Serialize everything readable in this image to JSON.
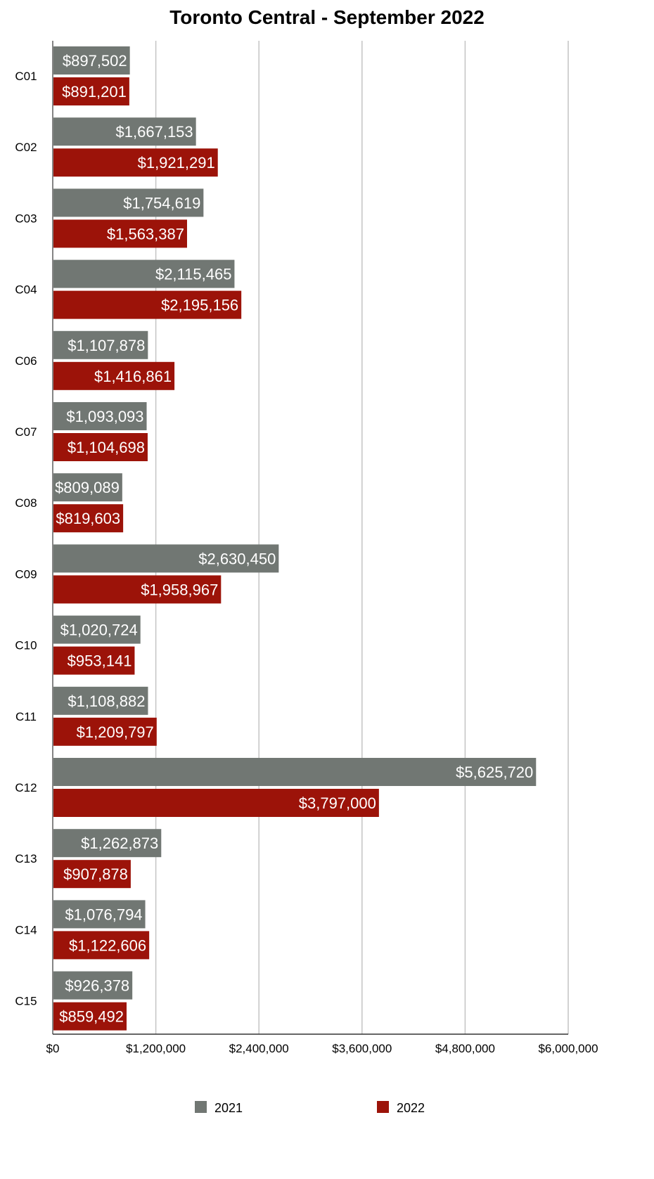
{
  "chart_data": {
    "type": "bar",
    "orientation": "horizontal",
    "title": "Toronto Central - September 2022",
    "categories": [
      "C01",
      "C02",
      "C03",
      "C04",
      "C06",
      "C07",
      "C08",
      "C09",
      "C10",
      "C11",
      "C12",
      "C13",
      "C14",
      "C15"
    ],
    "series": [
      {
        "name": "2021",
        "color": "#717773",
        "values": [
          897502,
          1667153,
          1754619,
          2115465,
          1107878,
          1093093,
          809089,
          2630450,
          1020724,
          1108882,
          5625720,
          1262873,
          1076794,
          926378
        ],
        "labels": [
          "$897,502",
          "$1,667,153",
          "$1,754,619",
          "$2,115,465",
          "$1,107,878",
          "$1,093,093",
          "$809,089",
          "$2,630,450",
          "$1,020,724",
          "$1,108,882",
          "$5,625,720",
          "$1,262,873",
          "$1,076,794",
          "$926,378"
        ]
      },
      {
        "name": "2022",
        "color": "#9c1309",
        "values": [
          891201,
          1921291,
          1563387,
          2195156,
          1416861,
          1104698,
          819603,
          1958967,
          953141,
          1209797,
          3797000,
          907878,
          1122606,
          859492
        ],
        "labels": [
          "$891,201",
          "$1,921,291",
          "$1,563,387",
          "$2,195,156",
          "$1,416,861",
          "$1,104,698",
          "$819,603",
          "$1,958,967",
          "$953,141",
          "$1,209,797",
          "$3,797,000",
          "$907,878",
          "$1,122,606",
          "$859,492"
        ]
      }
    ],
    "xlim": [
      0,
      6000000
    ],
    "xticks": [
      0,
      1200000,
      2400000,
      3600000,
      4800000,
      6000000
    ],
    "xtick_labels": [
      "$0",
      "$1,200,000",
      "$2,400,000",
      "$3,600,000",
      "$4,800,000",
      "$6,000,000"
    ],
    "grid": true,
    "legend_position": "bottom"
  }
}
